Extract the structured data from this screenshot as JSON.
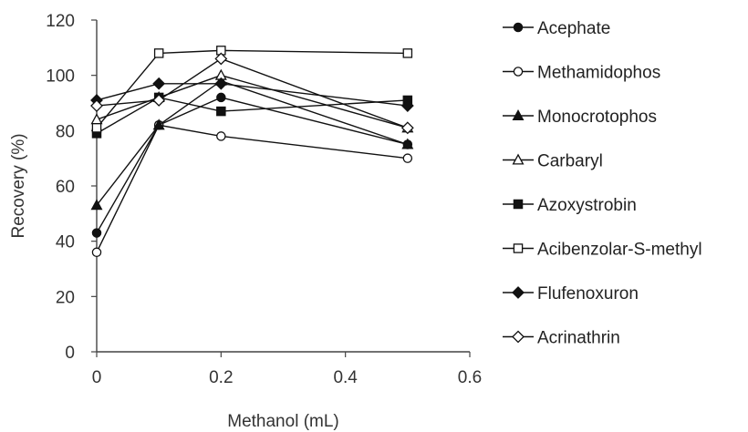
{
  "chart_data": {
    "type": "line",
    "title": "",
    "xlabel": "Methanol (mL)",
    "ylabel": "Recovery (%)",
    "xlim": [
      0,
      0.6
    ],
    "ylim": [
      0,
      120
    ],
    "xticks": [
      0,
      0.2,
      0.4,
      0.6
    ],
    "xtick_labels": [
      "0",
      "0.2",
      "0.4",
      "0.6"
    ],
    "yticks": [
      0,
      20,
      40,
      60,
      80,
      100,
      120
    ],
    "ytick_labels": [
      "0",
      "20",
      "40",
      "60",
      "80",
      "100",
      "120"
    ],
    "grid": false,
    "legend_position": "right",
    "x": [
      0,
      0.1,
      0.2,
      0.5
    ],
    "series": [
      {
        "name": "Acephate",
        "marker": "circle",
        "filled": true,
        "values": [
          43,
          82,
          92,
          75
        ]
      },
      {
        "name": "Methamidophos",
        "marker": "circle",
        "filled": false,
        "values": [
          36,
          82,
          78,
          70
        ]
      },
      {
        "name": "Monocrotophos",
        "marker": "triangle",
        "filled": true,
        "values": [
          53,
          82,
          98,
          75
        ]
      },
      {
        "name": "Carbaryl",
        "marker": "triangle",
        "filled": false,
        "values": [
          84,
          92,
          100,
          81
        ]
      },
      {
        "name": "Azoxystrobin",
        "marker": "square",
        "filled": true,
        "values": [
          79,
          92,
          87,
          91
        ]
      },
      {
        "name": "Acibenzolar-S-methyl",
        "marker": "square",
        "filled": false,
        "values": [
          81,
          108,
          109,
          108
        ]
      },
      {
        "name": "Flufenoxuron",
        "marker": "diamond",
        "filled": true,
        "values": [
          91,
          97,
          97,
          89
        ]
      },
      {
        "name": "Acrinathrin",
        "marker": "diamond",
        "filled": false,
        "values": [
          89,
          91,
          106,
          81
        ]
      }
    ],
    "colors": {
      "line": "#111111",
      "axis": "#444444",
      "text": "#333333"
    }
  }
}
